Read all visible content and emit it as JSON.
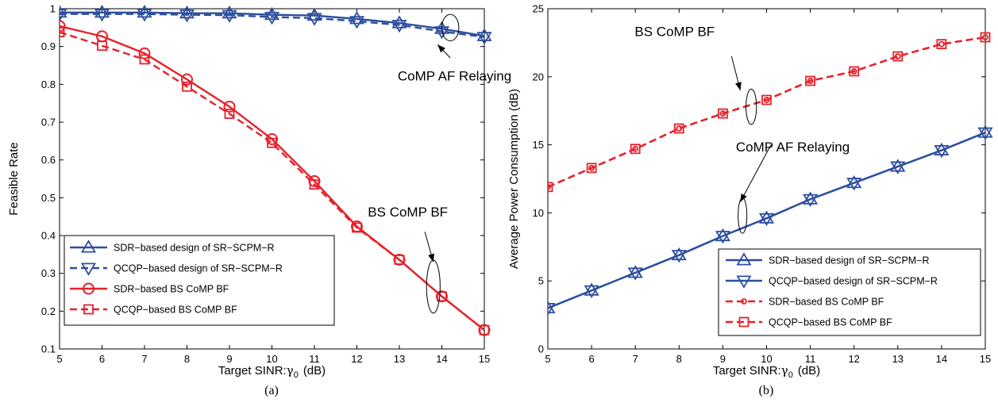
{
  "colors": {
    "blue": "#2e4f9e",
    "red": "#e8202a"
  },
  "chart_data": [
    {
      "id": "a",
      "type": "line",
      "caption": "(a)",
      "xlabel": "Target SINR:",
      "xlabel_symbol": "γ",
      "xlabel_subscript": "0",
      "xlabel_unit": "(dB)",
      "ylabel": "Feasible Rate",
      "xlim": [
        5,
        15
      ],
      "ylim": [
        0.1,
        1
      ],
      "xticks": [
        5,
        6,
        7,
        8,
        9,
        10,
        11,
        12,
        13,
        14,
        15
      ],
      "yticks": [
        0.1,
        0.2,
        0.3,
        0.4,
        0.5,
        0.6,
        0.7,
        0.8,
        0.9
      ],
      "ytick_labels": [
        "0.1",
        "0.2",
        "0.3",
        "0.4",
        "0.5",
        "0.6",
        "0.7",
        "0.8",
        "0.9"
      ],
      "ytop_label": "1",
      "grid": false,
      "legend_position": "bottom-left",
      "x": [
        5,
        6,
        7,
        8,
        9,
        10,
        11,
        12,
        13,
        14,
        15
      ],
      "series": [
        {
          "name": "SDR−based design of SR−SCPM−R",
          "color": "blue",
          "dash": "solid",
          "marker": "triangle-up",
          "values": [
            0.99,
            0.99,
            0.99,
            0.988,
            0.988,
            0.984,
            0.982,
            0.973,
            0.962,
            0.947,
            0.928
          ]
        },
        {
          "name": "QCQP−based design of SR−SCPM−R",
          "color": "blue",
          "dash": "dashed",
          "marker": "triangle-down",
          "values": [
            0.986,
            0.986,
            0.986,
            0.984,
            0.983,
            0.978,
            0.975,
            0.967,
            0.957,
            0.94,
            0.925
          ]
        },
        {
          "name": "SDR−based BS CoMP BF",
          "color": "red",
          "dash": "solid",
          "marker": "circle",
          "values": [
            0.954,
            0.927,
            0.882,
            0.813,
            0.741,
            0.655,
            0.544,
            0.424,
            0.336,
            0.239,
            0.15
          ]
        },
        {
          "name": "QCQP−based BS CoMP BF",
          "color": "red",
          "dash": "dashed",
          "marker": "square",
          "values": [
            0.938,
            0.902,
            0.866,
            0.794,
            0.722,
            0.645,
            0.535,
            0.421,
            0.336,
            0.239,
            0.15
          ]
        }
      ],
      "annotations": [
        {
          "text": "CoMP AF Relaying",
          "text_x": 14.3,
          "text_y": 0.81,
          "arrow_from": [
            14.2,
            0.87
          ],
          "arrow_to": [
            13.9,
            0.905
          ],
          "ellipse": [
            14.2,
            0.95,
            0.2,
            0.035
          ]
        },
        {
          "text": "BS CoMP BF",
          "text_x": 13.2,
          "text_y": 0.45,
          "arrow_from": [
            13.6,
            0.41
          ],
          "arrow_to": [
            13.8,
            0.33
          ],
          "ellipse": [
            13.8,
            0.265,
            0.16,
            0.07
          ]
        }
      ]
    },
    {
      "id": "b",
      "type": "line",
      "caption": "(b)",
      "xlabel": "Target SINR:",
      "xlabel_symbol": "γ",
      "xlabel_subscript": "0",
      "xlabel_unit": "(dB)",
      "ylabel": "Average Power Consumption (dB)",
      "xlim": [
        5,
        15
      ],
      "ylim": [
        0,
        25
      ],
      "xticks": [
        5,
        6,
        7,
        8,
        9,
        10,
        11,
        12,
        13,
        14,
        15
      ],
      "yticks": [
        0,
        5,
        10,
        15,
        20,
        25
      ],
      "ytick_labels": [
        "0",
        "5",
        "10",
        "15",
        "20",
        "25"
      ],
      "grid": false,
      "legend_position": "bottom-right",
      "x": [
        5,
        6,
        7,
        8,
        9,
        10,
        11,
        12,
        13,
        14,
        15
      ],
      "series": [
        {
          "name": "SDR−based design of SR−SCPM−R",
          "color": "blue",
          "dash": "solid",
          "marker": "triangle-up",
          "values": [
            3.0,
            4.3,
            5.6,
            6.9,
            8.3,
            9.6,
            11.0,
            12.2,
            13.4,
            14.6,
            15.9
          ]
        },
        {
          "name": "QCQP−based design of SR−SCPM−R",
          "color": "blue",
          "dash": "solid",
          "marker": "triangle-down",
          "values": [
            3.0,
            4.3,
            5.6,
            6.9,
            8.3,
            9.6,
            11.0,
            12.2,
            13.4,
            14.6,
            15.9
          ]
        },
        {
          "name": "SDR−based BS CoMP BF",
          "color": "red",
          "dash": "dashed",
          "marker": "circle-small",
          "values": [
            11.9,
            13.3,
            14.7,
            16.2,
            17.3,
            18.3,
            19.7,
            20.4,
            21.5,
            22.4,
            22.9
          ]
        },
        {
          "name": "QCQP−based BS CoMP BF",
          "color": "red",
          "dash": "dashed",
          "marker": "square",
          "values": [
            11.9,
            13.3,
            14.7,
            16.2,
            17.3,
            18.3,
            19.7,
            20.4,
            21.5,
            22.4,
            22.9
          ]
        }
      ],
      "annotations": [
        {
          "text": "BS CoMP BF",
          "text_x": 7.9,
          "text_y": 23.0,
          "arrow_from": [
            9.2,
            21.5
          ],
          "arrow_to": [
            9.4,
            19.0
          ],
          "ellipse": [
            9.65,
            17.8,
            0.12,
            1.3
          ]
        },
        {
          "text": "CoMP AF Relaying",
          "text_x": 10.6,
          "text_y": 14.5,
          "arrow_from": [
            10.1,
            15.0
          ],
          "arrow_to": [
            9.4,
            10.8
          ],
          "ellipse": [
            9.45,
            9.8,
            0.1,
            1.3
          ]
        }
      ]
    }
  ]
}
